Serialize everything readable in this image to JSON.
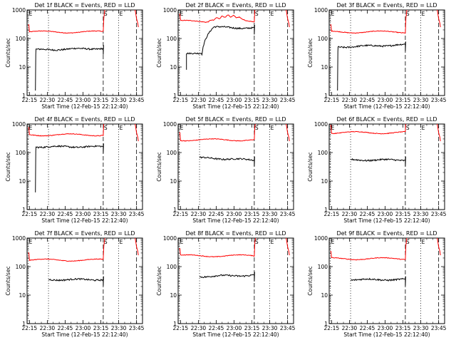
{
  "chart_data": {
    "type": "line",
    "grid": "3x3",
    "y_scale": "log",
    "ylim": [
      1,
      1000
    ],
    "y_ticks": [
      "1",
      "10",
      "100",
      "1000"
    ],
    "ylabel": "Counts/sec",
    "xlabel": "Start Time (12-Feb-15 22:12:40)",
    "x_ticks": [
      "22:15",
      "22:30",
      "22:45",
      "23:00",
      "23:15",
      "23:30",
      "23:45"
    ],
    "x_tick_minutes": [
      0,
      15,
      30,
      45,
      60,
      75,
      90
    ],
    "x_range_minutes": [
      -2,
      95
    ],
    "markers": [
      {
        "label": "E",
        "minute": -1,
        "style": "dotted"
      },
      {
        "label": "",
        "minute": 16,
        "style": "dotted"
      },
      {
        "label": "S",
        "minute": 62,
        "style": "dashed"
      },
      {
        "label": "E",
        "minute": 75,
        "style": "dotted"
      },
      {
        "label": "",
        "minute": 90,
        "style": "dashed"
      }
    ],
    "colors": {
      "events": "#000000",
      "lld": "#ff0000"
    },
    "panels": [
      {
        "title": "Det 1f BLACK = Events, RED = LLD",
        "lld": 170,
        "events": 40,
        "events_end": 45,
        "dip": 1.5,
        "rise": "step"
      },
      {
        "title": "Det 2f BLACK = Events, RED = LLD",
        "lld": 400,
        "events": 250,
        "events_end": 230,
        "dip": 8,
        "rise": "slow"
      },
      {
        "title": "Det 3f BLACK = Events, RED = LLD",
        "lld": 170,
        "events": 50,
        "events_end": 60,
        "dip": 1.5,
        "rise": "step"
      },
      {
        "title": "Det 4f BLACK = Events, RED = LLD",
        "lld": 420,
        "events": 160,
        "events_end": 160,
        "dip": 4,
        "rise": "step"
      },
      {
        "title": "Det 5f BLACK = Events, RED = LLD",
        "lld": 280,
        "events": 65,
        "events_end": 55,
        "dip": 0,
        "rise": "none"
      },
      {
        "title": "Det 6f BLACK = Events, RED = LLD",
        "lld": 500,
        "events": 55,
        "events_end": 55,
        "dip": 0,
        "rise": "none"
      },
      {
        "title": "Det 7f BLACK = Events, RED = LLD",
        "lld": 170,
        "events": 35,
        "events_end": 35,
        "dip": 0,
        "rise": "none"
      },
      {
        "title": "Det 8f BLACK = Events, RED = LLD",
        "lld": 240,
        "events": 45,
        "events_end": 50,
        "dip": 0,
        "rise": "none"
      },
      {
        "title": "Det 9f BLACK = Events, RED = LLD",
        "lld": 190,
        "events": 35,
        "events_end": 35,
        "dip": 0,
        "rise": "none"
      }
    ]
  }
}
